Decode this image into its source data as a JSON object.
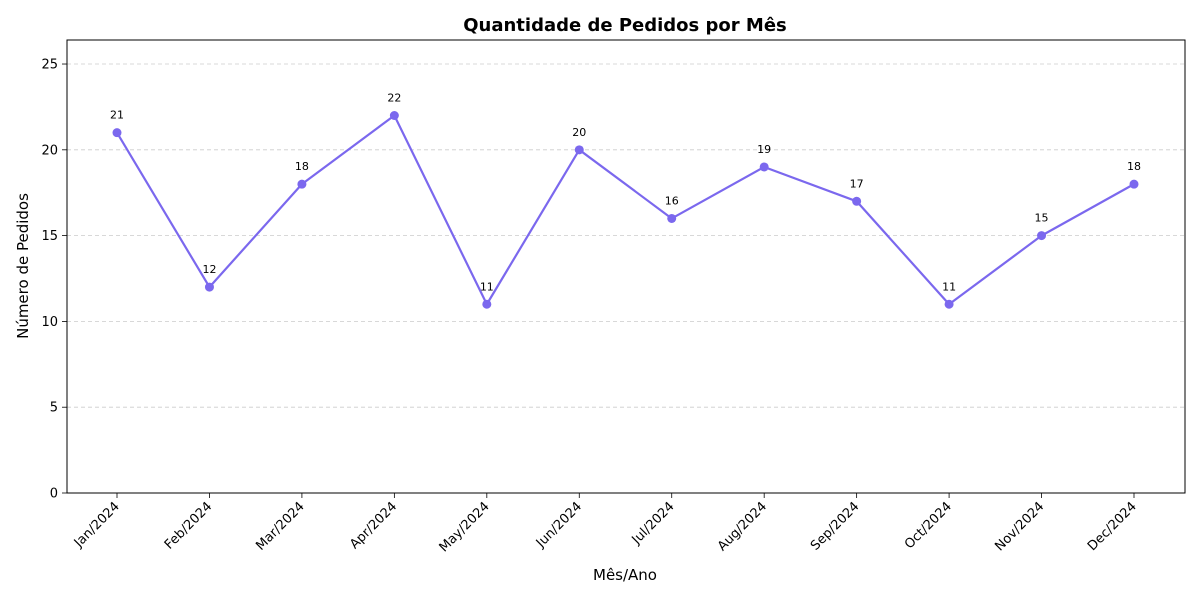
{
  "chart_data": {
    "type": "line",
    "title": "Quantidade de Pedidos por Mês",
    "xlabel": "Mês/Ano",
    "ylabel": "Número de Pedidos",
    "categories": [
      "Jan/2024",
      "Feb/2024",
      "Mar/2024",
      "Apr/2024",
      "May/2024",
      "Jun/2024",
      "Jul/2024",
      "Aug/2024",
      "Sep/2024",
      "Oct/2024",
      "Nov/2024",
      "Dec/2024"
    ],
    "series": [
      {
        "values": [
          21,
          12,
          18,
          22,
          11,
          20,
          16,
          19,
          17,
          11,
          15,
          18
        ],
        "color": "#7b68ee"
      }
    ],
    "data_labels": [
      "21",
      "12",
      "18",
      "22",
      "11",
      "20",
      "16",
      "19",
      "17",
      "11",
      "15",
      "18"
    ],
    "ylim": [
      0,
      26.4
    ],
    "yticks": [
      0,
      5,
      10,
      15,
      20,
      25
    ],
    "ytick_labels": [
      "0",
      "5",
      "10",
      "15",
      "20",
      "25"
    ],
    "grid": "y-dashed",
    "xtick_rotation": 45
  }
}
